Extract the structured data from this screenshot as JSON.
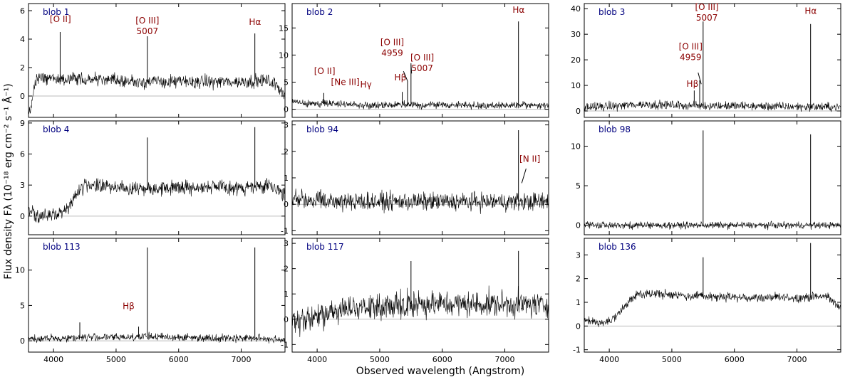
{
  "figure": {
    "xlabel": "Observed wavelength (Angstrom)",
    "ylabel": "Flux density Fλ (10⁻¹⁸ erg cm⁻² s⁻¹ Å⁻¹)"
  },
  "chart_data": [
    {
      "type": "line",
      "name": "blob 1",
      "xlim": [
        3600,
        7700
      ],
      "ylim": [
        -1.5,
        6.5
      ],
      "yticks": [
        0,
        2,
        4,
        6
      ],
      "xticks": [
        4000,
        5000,
        6000,
        7000
      ],
      "continuum": [
        [
          3600,
          -1.2
        ],
        [
          3650,
          -0.8
        ],
        [
          3700,
          1.0
        ],
        [
          3800,
          1.3
        ],
        [
          4000,
          1.2
        ],
        [
          4500,
          1.2
        ],
        [
          5000,
          1.1
        ],
        [
          5500,
          1.0
        ],
        [
          6000,
          1.0
        ],
        [
          6500,
          1.0
        ],
        [
          7000,
          1.0
        ],
        [
          7400,
          1.1
        ],
        [
          7550,
          0.8
        ],
        [
          7700,
          0.2
        ]
      ],
      "noise": 0.38,
      "emission_lines": [
        {
          "x": 4106,
          "peak": 4.5
        },
        {
          "x": 5500,
          "peak": 4.2
        },
        {
          "x": 7218,
          "peak": 4.4
        }
      ],
      "annotations": [
        {
          "text": [
            "[O II]"
          ],
          "x": 4110,
          "y": 5.2
        },
        {
          "text": [
            "[O III]",
            "5007"
          ],
          "x": 5500,
          "y": 5.1
        },
        {
          "text": [
            "Hα"
          ],
          "x": 7220,
          "y": 5.0
        }
      ]
    },
    {
      "type": "line",
      "name": "blob 2",
      "xlim": [
        3600,
        7700
      ],
      "ylim": [
        -1.5,
        19.5
      ],
      "yticks": [
        0,
        5,
        10,
        15
      ],
      "xticks": [
        4000,
        5000,
        6000,
        7000
      ],
      "continuum": [
        [
          3600,
          1.4
        ],
        [
          4000,
          1.1
        ],
        [
          4500,
          0.9
        ],
        [
          5000,
          0.8
        ],
        [
          5500,
          0.8
        ],
        [
          6000,
          0.8
        ],
        [
          6500,
          0.7
        ],
        [
          7000,
          0.7
        ],
        [
          7700,
          0.7
        ]
      ],
      "noise": 0.55,
      "emission_lines": [
        {
          "x": 4106,
          "peak": 3.0
        },
        {
          "x": 5360,
          "peak": 3.2
        },
        {
          "x": 5445,
          "peak": 5.2
        },
        {
          "x": 5500,
          "peak": 8.5
        },
        {
          "x": 7218,
          "peak": 16.2
        }
      ],
      "annotations": [
        {
          "text": [
            "[O II]"
          ],
          "x": 4120,
          "y": 6.5
        },
        {
          "text": [
            "[Ne III]"
          ],
          "x": 4450,
          "y": 4.5
        },
        {
          "text": [
            "Hγ"
          ],
          "x": 4780,
          "y": 4.0
        },
        {
          "text": [
            "[O III]",
            "4959"
          ],
          "x": 5200,
          "y": 11.8
        },
        {
          "text": [
            "Hβ"
          ],
          "x": 5330,
          "y": 5.3
        },
        {
          "text": [
            "[O III]",
            "5007"
          ],
          "x": 5680,
          "y": 9.0
        },
        {
          "text": [
            "Hα"
          ],
          "x": 7220,
          "y": 17.8
        }
      ],
      "leaders": [
        [
          5380,
          7.0,
          5445,
          5.2
        ],
        [
          5510,
          6.6,
          5500,
          8.2
        ]
      ]
    },
    {
      "type": "line",
      "name": "blob 3",
      "xlim": [
        3600,
        7700
      ],
      "ylim": [
        -2.5,
        42
      ],
      "yticks": [
        0,
        10,
        20,
        30,
        40
      ],
      "xticks": [
        4000,
        5000,
        6000,
        7000
      ],
      "continuum": [
        [
          3600,
          1.3
        ],
        [
          4000,
          1.8
        ],
        [
          4500,
          2.6
        ],
        [
          5000,
          2.3
        ],
        [
          5500,
          2.1
        ],
        [
          6000,
          2.0
        ],
        [
          6500,
          1.8
        ],
        [
          7000,
          1.7
        ],
        [
          7700,
          1.5
        ]
      ],
      "noise": 1.4,
      "emission_lines": [
        {
          "x": 5358,
          "peak": 8.0
        },
        {
          "x": 5445,
          "peak": 12.0
        },
        {
          "x": 5500,
          "peak": 35.0
        },
        {
          "x": 7218,
          "peak": 34.0
        }
      ],
      "annotations": [
        {
          "text": [
            "[O III]",
            "5007"
          ],
          "x": 5560,
          "y": 39.5
        },
        {
          "text": [
            "[O III]",
            "4959"
          ],
          "x": 5300,
          "y": 24.0
        },
        {
          "text": [
            "Hβ"
          ],
          "x": 5330,
          "y": 9.5
        },
        {
          "text": [
            "Hα"
          ],
          "x": 7220,
          "y": 38.0
        }
      ],
      "leaders": [
        [
          5420,
          15.0,
          5470,
          10.5
        ]
      ]
    },
    {
      "type": "line",
      "name": "blob 4",
      "xlim": [
        3600,
        7700
      ],
      "ylim": [
        -1.8,
        9.2
      ],
      "yticks": [
        0,
        3,
        6,
        9
      ],
      "xticks": [
        4000,
        5000,
        6000,
        7000
      ],
      "continuum": [
        [
          3600,
          0.4
        ],
        [
          3800,
          0.0
        ],
        [
          4000,
          0.1
        ],
        [
          4200,
          0.6
        ],
        [
          4350,
          2.0
        ],
        [
          4500,
          3.0
        ],
        [
          5000,
          2.8
        ],
        [
          5500,
          2.7
        ],
        [
          6000,
          2.8
        ],
        [
          6500,
          2.8
        ],
        [
          7000,
          2.7
        ],
        [
          7500,
          2.9
        ],
        [
          7700,
          2.0
        ]
      ],
      "noise": 0.55,
      "emission_lines": [
        {
          "x": 5500,
          "peak": 7.6
        },
        {
          "x": 7218,
          "peak": 8.6
        }
      ],
      "annotations": []
    },
    {
      "type": "line",
      "name": "blob 94",
      "xlim": [
        3600,
        7700
      ],
      "ylim": [
        -1.15,
        3.15
      ],
      "yticks": [
        -1,
        0,
        1,
        2,
        3
      ],
      "xticks": [
        4000,
        5000,
        6000,
        7000
      ],
      "continuum": [
        [
          3600,
          0.2
        ],
        [
          4000,
          0.15
        ],
        [
          5000,
          0.1
        ],
        [
          6000,
          0.1
        ],
        [
          7000,
          0.1
        ],
        [
          7700,
          0.1
        ]
      ],
      "noise": 0.28,
      "emission_lines": [
        {
          "x": 7218,
          "peak": 2.8
        }
      ],
      "annotations": [
        {
          "text": [
            "[N II]"
          ],
          "x": 7400,
          "y": 1.6
        }
      ],
      "leaders": [
        [
          7340,
          1.35,
          7270,
          0.8
        ]
      ]
    },
    {
      "type": "line",
      "name": "blob 98",
      "xlim": [
        3600,
        7700
      ],
      "ylim": [
        -1.2,
        13.2
      ],
      "yticks": [
        0,
        5,
        10
      ],
      "xticks": [
        4000,
        5000,
        6000,
        7000
      ],
      "continuum": [
        [
          3600,
          0.1
        ],
        [
          4000,
          0.0
        ],
        [
          5000,
          0.0
        ],
        [
          6000,
          0.0
        ],
        [
          7000,
          0.0
        ],
        [
          7700,
          0.0
        ]
      ],
      "noise": 0.35,
      "emission_lines": [
        {
          "x": 5500,
          "peak": 12.0
        },
        {
          "x": 7218,
          "peak": 11.5
        }
      ],
      "annotations": []
    },
    {
      "type": "line",
      "name": "blob 113",
      "xlim": [
        3600,
        7700
      ],
      "ylim": [
        -1.6,
        14.5
      ],
      "yticks": [
        0,
        5,
        10
      ],
      "xticks": [
        4000,
        5000,
        6000,
        7000
      ],
      "continuum": [
        [
          3600,
          0.3
        ],
        [
          4000,
          0.3
        ],
        [
          4500,
          0.5
        ],
        [
          5000,
          0.5
        ],
        [
          5500,
          0.6
        ],
        [
          6000,
          0.5
        ],
        [
          6500,
          0.4
        ],
        [
          7000,
          0.4
        ],
        [
          7700,
          0.2
        ]
      ],
      "noise": 0.45,
      "emission_lines": [
        {
          "x": 4420,
          "peak": 2.6
        },
        {
          "x": 5360,
          "peak": 2.0
        },
        {
          "x": 5500,
          "peak": 13.2
        },
        {
          "x": 7218,
          "peak": 13.2
        }
      ],
      "annotations": [
        {
          "text": [
            "Hβ"
          ],
          "x": 5200,
          "y": 4.5
        }
      ]
    },
    {
      "type": "line",
      "name": "blob 117",
      "xlim": [
        3600,
        7700
      ],
      "ylim": [
        -1.3,
        3.2
      ],
      "yticks": [
        -1,
        0,
        1,
        2,
        3
      ],
      "xticks": [
        4000,
        5000,
        6000,
        7000
      ],
      "continuum": [
        [
          3600,
          -0.1
        ],
        [
          4000,
          0.1
        ],
        [
          4500,
          0.4
        ],
        [
          5000,
          0.5
        ],
        [
          5500,
          0.6
        ],
        [
          6000,
          0.6
        ],
        [
          6500,
          0.6
        ],
        [
          7000,
          0.6
        ],
        [
          7700,
          0.55
        ]
      ],
      "noise": 0.42,
      "emission_lines": [
        {
          "x": 5500,
          "peak": 2.3
        },
        {
          "x": 7218,
          "peak": 2.7
        }
      ],
      "annotations": []
    },
    {
      "type": "line",
      "name": "blob 136",
      "xlim": [
        3600,
        7700
      ],
      "ylim": [
        -1.1,
        3.7
      ],
      "yticks": [
        -1,
        0,
        1,
        2,
        3
      ],
      "xticks": [
        4000,
        5000,
        6000,
        7000
      ],
      "continuum": [
        [
          3600,
          0.2
        ],
        [
          3900,
          0.1
        ],
        [
          4100,
          0.35
        ],
        [
          4300,
          1.0
        ],
        [
          4500,
          1.4
        ],
        [
          5000,
          1.3
        ],
        [
          5500,
          1.25
        ],
        [
          6000,
          1.2
        ],
        [
          6500,
          1.2
        ],
        [
          7000,
          1.2
        ],
        [
          7500,
          1.25
        ],
        [
          7700,
          0.7
        ]
      ],
      "noise": 0.15,
      "emission_lines": [
        {
          "x": 5500,
          "peak": 2.9
        },
        {
          "x": 7218,
          "peak": 3.5
        }
      ],
      "annotations": []
    }
  ]
}
